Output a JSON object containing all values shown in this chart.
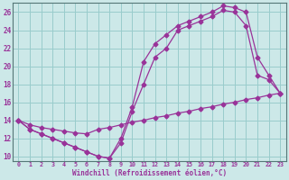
{
  "bg_color": "#cce8e8",
  "line_color": "#993399",
  "grid_color": "#99cccc",
  "xlabel": "Windchill (Refroidissement éolien,°C)",
  "xlim": [
    -0.5,
    23.5
  ],
  "ylim": [
    9.5,
    27
  ],
  "yticks": [
    10,
    12,
    14,
    16,
    18,
    20,
    22,
    24,
    26
  ],
  "xticks": [
    0,
    1,
    2,
    3,
    4,
    5,
    6,
    7,
    8,
    9,
    10,
    11,
    12,
    13,
    14,
    15,
    16,
    17,
    18,
    19,
    20,
    21,
    22,
    23
  ],
  "line1_x": [
    0,
    1,
    2,
    3,
    4,
    5,
    6,
    7,
    8,
    9,
    10,
    11,
    12,
    13,
    14,
    15,
    16,
    17,
    18,
    19,
    20,
    21,
    22,
    23
  ],
  "line1_y": [
    14,
    13,
    12.5,
    12,
    11.5,
    11,
    10.5,
    10,
    9.8,
    11.5,
    15,
    18,
    21,
    22,
    24,
    24.5,
    25,
    25.5,
    26.2,
    26,
    24.5,
    19,
    18.5,
    17
  ],
  "line2_x": [
    0,
    1,
    2,
    3,
    4,
    5,
    6,
    7,
    8,
    9,
    10,
    11,
    12,
    13,
    14,
    15,
    16,
    17,
    18,
    19,
    20,
    21,
    22,
    23
  ],
  "line2_y": [
    14,
    13,
    12.5,
    12,
    11.5,
    11,
    10.5,
    10,
    9.8,
    12,
    15.5,
    20.5,
    22.5,
    23.5,
    24.5,
    25,
    25.5,
    26,
    26.7,
    26.5,
    26,
    21,
    19,
    17
  ],
  "line3_x": [
    0,
    1,
    2,
    3,
    4,
    5,
    6,
    7,
    8,
    9,
    10,
    11,
    12,
    13,
    14,
    15,
    16,
    17,
    18,
    19,
    20,
    21,
    22,
    23
  ],
  "line3_y": [
    14,
    13.5,
    13.2,
    13.0,
    12.8,
    12.6,
    12.5,
    13.0,
    13.2,
    13.5,
    13.8,
    14.0,
    14.3,
    14.5,
    14.8,
    15.0,
    15.3,
    15.5,
    15.8,
    16.0,
    16.3,
    16.5,
    16.8,
    17.0
  ]
}
